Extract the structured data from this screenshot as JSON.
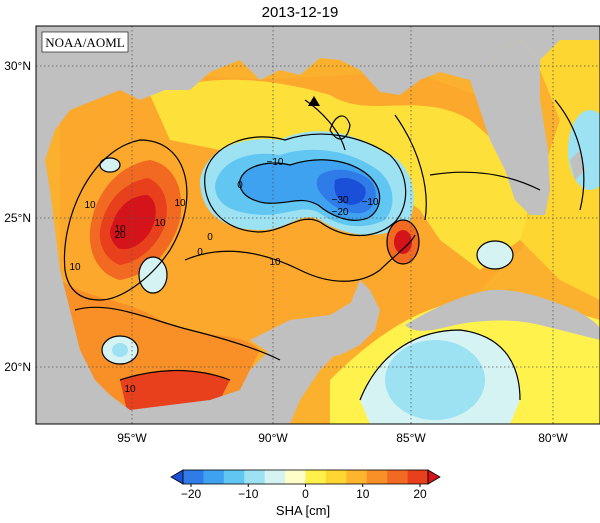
{
  "title": "2013-12-19",
  "credit": "NOAA/AOML",
  "lat_labels": [
    "30°N",
    "25°N",
    "20°N"
  ],
  "lon_labels": [
    "95°W",
    "90°W",
    "85°W",
    "80°W"
  ],
  "colorbar": {
    "ticks": [
      "−20",
      "−10",
      "0",
      "10",
      "20"
    ],
    "label": "SHA [cm]",
    "colors": [
      "#1a4fd8",
      "#2f7ce8",
      "#3fa2f0",
      "#62c6f2",
      "#9ce2f2",
      "#d6f3f4",
      "#fffdc8",
      "#fff14a",
      "#fed632",
      "#fcb52c",
      "#f99027",
      "#f26a22",
      "#e8401d",
      "#d4141a"
    ]
  },
  "contour_labels": [
    "10",
    "0",
    "−10",
    "−30",
    "−20",
    "−10",
    "10",
    "10",
    "20",
    "10",
    "0",
    "10",
    "0",
    "10",
    "10"
  ],
  "colors": {
    "land": "#c0c0c0",
    "ocean_base": "#fbb12d",
    "grid": "#555555"
  },
  "marker": "triangle"
}
